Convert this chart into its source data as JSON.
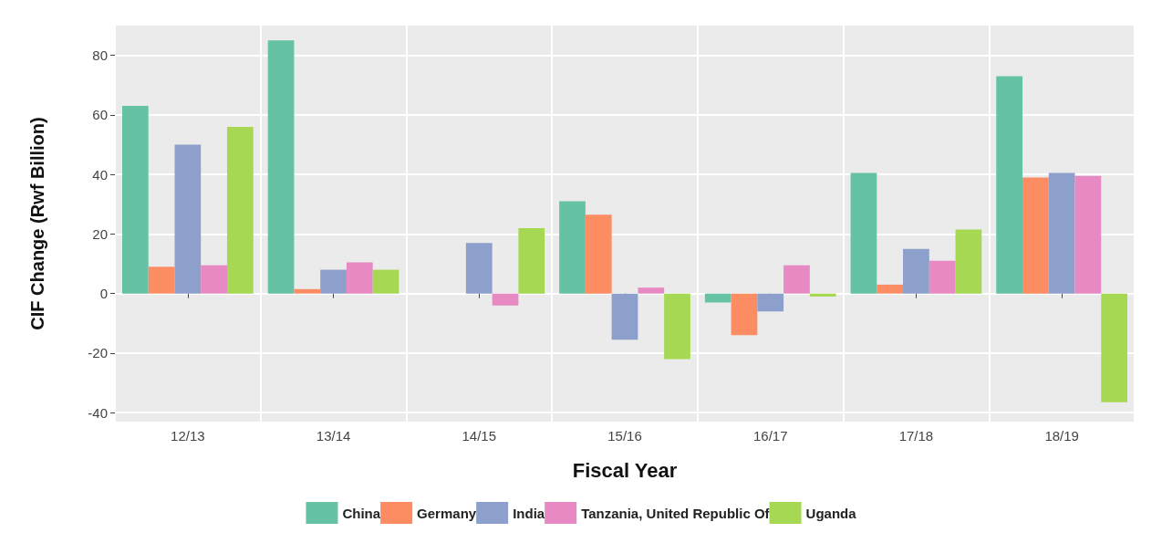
{
  "chart_data": {
    "type": "bar",
    "xlabel": "Fiscal Year",
    "ylabel": "CIF Change (Rwf Billion)",
    "categories": [
      "12/13",
      "13/14",
      "14/15",
      "15/16",
      "16/17",
      "17/18",
      "18/19"
    ],
    "series": [
      {
        "name": "China",
        "color": "#66c2a5",
        "values": [
          63,
          85,
          null,
          31,
          -3,
          40.5,
          73
        ]
      },
      {
        "name": "Germany",
        "color": "#fc8d62",
        "values": [
          9,
          1.5,
          null,
          26.5,
          -14,
          3,
          39
        ]
      },
      {
        "name": "India",
        "color": "#8da0cb",
        "values": [
          50,
          8,
          17,
          -15.5,
          -6,
          15,
          40.5
        ]
      },
      {
        "name": "Tanzania, United Republic Of",
        "color": "#e78ac3",
        "values": [
          9.5,
          10.5,
          -4,
          2,
          9.5,
          11,
          39.5
        ]
      },
      {
        "name": "Uganda",
        "color": "#a6d854",
        "values": [
          56,
          8,
          22,
          -22,
          -1,
          21.5,
          -36.5
        ]
      }
    ],
    "ylim": [
      -43,
      90
    ],
    "yticks": [
      -40,
      -20,
      0,
      20,
      40,
      60,
      80
    ],
    "grid": true,
    "legend": "bottom"
  }
}
